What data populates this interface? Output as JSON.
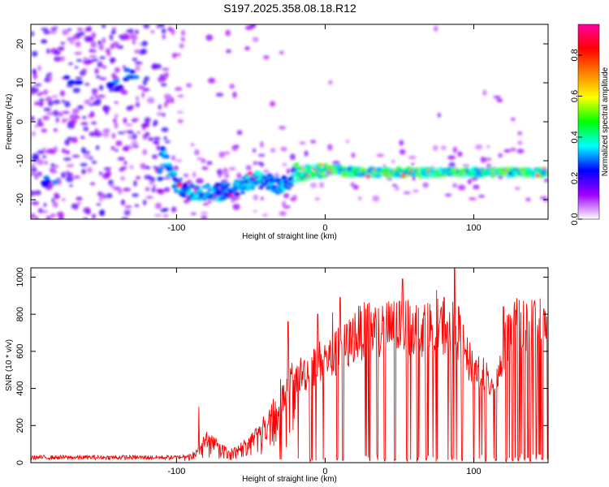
{
  "title": "S197.2025.358.08.18.R12",
  "chart_data": [
    {
      "type": "heatmap",
      "name": "spectrogram",
      "xlabel": "Height of straight line (km)",
      "ylabel": "Frequency (Hz)",
      "xlim": [
        -198,
        150
      ],
      "ylim": [
        -25,
        25
      ],
      "xticks": [
        -100,
        0,
        100
      ],
      "yticks": [
        -20,
        -10,
        0,
        10,
        20
      ],
      "colorbar": {
        "label": "Normalized spectral amplitude",
        "range": [
          0.0,
          0.95
        ],
        "ticks": [
          0.0,
          0.2,
          0.4,
          0.6,
          0.8
        ],
        "colors": [
          "#ffffff",
          "#9f00ff",
          "#0000ff",
          "#00ffff",
          "#00ff00",
          "#ffff00",
          "#ff8000",
          "#ff0000",
          "#ff00a0"
        ]
      },
      "signal_track": [
        {
          "x": -110,
          "y": -8
        },
        {
          "x": -100,
          "y": -16
        },
        {
          "x": -90,
          "y": -18
        },
        {
          "x": -80,
          "y": -18
        },
        {
          "x": -70,
          "y": -18
        },
        {
          "x": -60,
          "y": -17
        },
        {
          "x": -50,
          "y": -15
        },
        {
          "x": -40,
          "y": -15
        },
        {
          "x": -30,
          "y": -17
        },
        {
          "x": -20,
          "y": -13
        },
        {
          "x": -10,
          "y": -13
        },
        {
          "x": 0,
          "y": -12
        },
        {
          "x": 20,
          "y": -13
        },
        {
          "x": 40,
          "y": -13
        },
        {
          "x": 60,
          "y": -13
        },
        {
          "x": 80,
          "y": -13
        },
        {
          "x": 100,
          "y": -13
        },
        {
          "x": 120,
          "y": -13
        },
        {
          "x": 150,
          "y": -13
        }
      ],
      "noise_bursts": [
        {
          "x": -170,
          "y": 10
        },
        {
          "x": -142,
          "y": 9
        },
        {
          "x": -130,
          "y": 12
        },
        {
          "x": -185,
          "y": -15
        }
      ]
    },
    {
      "type": "line",
      "name": "snr",
      "xlabel": "Height of straight line (km)",
      "ylabel": "SNR (10 * v/v)",
      "xlim": [
        -198,
        150
      ],
      "ylim": [
        0,
        1050
      ],
      "xticks": [
        -100,
        0,
        100
      ],
      "yticks": [
        0,
        200,
        400,
        600,
        800,
        1000
      ],
      "color": "#ff0000",
      "series": [
        {
          "name": "SNR envelope",
          "x": [
            -198,
            -180,
            -160,
            -140,
            -120,
            -100,
            -90,
            -85,
            -80,
            -75,
            -70,
            -65,
            -60,
            -50,
            -40,
            -35,
            -30,
            -25,
            -20,
            -15,
            -10,
            -5,
            0,
            5,
            10,
            15,
            20,
            30,
            40,
            50,
            60,
            70,
            80,
            90,
            95,
            100,
            105,
            110,
            115,
            118,
            120,
            125,
            130,
            140,
            150
          ],
          "y": [
            28,
            28,
            28,
            28,
            28,
            28,
            40,
            80,
            140,
            120,
            90,
            60,
            70,
            130,
            220,
            300,
            320,
            420,
            460,
            480,
            500,
            540,
            560,
            560,
            620,
            630,
            690,
            720,
            720,
            730,
            740,
            720,
            730,
            700,
            560,
            520,
            480,
            430,
            460,
            510,
            590,
            730,
            740,
            740,
            740
          ]
        }
      ],
      "spikes": [
        {
          "x": -85,
          "y": 300
        },
        {
          "x": -30,
          "y": 450
        },
        {
          "x": -25,
          "y": 760
        },
        {
          "x": -5,
          "y": 800
        },
        {
          "x": 5,
          "y": 810
        },
        {
          "x": 10,
          "y": 890
        },
        {
          "x": 50,
          "y": 870
        },
        {
          "x": 52,
          "y": 990
        },
        {
          "x": 75,
          "y": 930
        },
        {
          "x": 80,
          "y": 890
        },
        {
          "x": 87,
          "y": 1050
        },
        {
          "x": 120,
          "y": 840
        }
      ],
      "dropouts": [
        -30,
        -10,
        8,
        12,
        30,
        35,
        40,
        47,
        55,
        62,
        68,
        75,
        85,
        92,
        100,
        108,
        115,
        122,
        126,
        130,
        134,
        138,
        142,
        146
      ]
    }
  ]
}
